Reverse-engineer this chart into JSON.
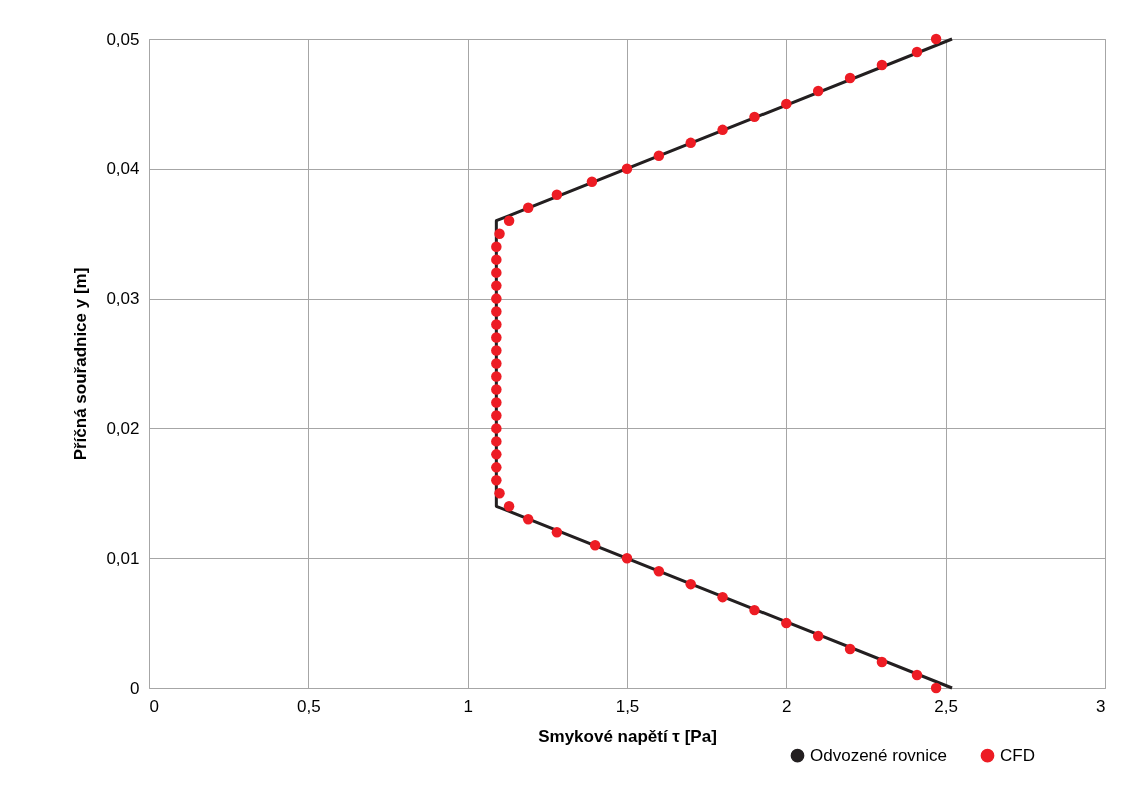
{
  "chart_data": {
    "type": "line",
    "xlabel": "Smykové napětí τ [Pa]",
    "ylabel": "Příčná souřadnice y [m]",
    "xlim": [
      0,
      3
    ],
    "ylim": [
      0,
      0.05
    ],
    "xticks": [
      0,
      {
        "value": 0.5,
        "label": "0,5"
      },
      1,
      {
        "value": 1.5,
        "label": "1,5"
      },
      2,
      {
        "value": 2.5,
        "label": "2,5"
      },
      3
    ],
    "yticks": [
      0,
      {
        "value": 0.01,
        "label": "0,01"
      },
      {
        "value": 0.02,
        "label": "0,02"
      },
      {
        "value": 0.03,
        "label": "0,03"
      },
      {
        "value": 0.04,
        "label": "0,04"
      },
      {
        "value": 0.05,
        "label": "0,05"
      }
    ],
    "grid": true,
    "legend": "bottom right",
    "series": [
      {
        "name": "Odvozené rovnice",
        "type": "line",
        "color": "#231f20",
        "marker": "none",
        "line_style": "solid",
        "x": [
          2.52,
          1.09,
          1.09,
          2.52
        ],
        "values": [
          0,
          0.014,
          0.036,
          0.05
        ]
      },
      {
        "name": "CFD",
        "type": "scatter",
        "color": "#ed1c24",
        "marker": "circle",
        "x": [
          2.47,
          2.41,
          2.3,
          2.2,
          2.1,
          2.0,
          1.9,
          1.8,
          1.7,
          1.6,
          1.5,
          1.4,
          1.28,
          1.19,
          1.13,
          1.1,
          1.09,
          1.09,
          1.09,
          1.09,
          1.09,
          1.09,
          1.09,
          1.09,
          1.09,
          1.09,
          1.09,
          1.09,
          1.09,
          1.09,
          1.09,
          1.09,
          1.09,
          1.09,
          1.09,
          1.1,
          1.13,
          1.19,
          1.28,
          1.39,
          1.5,
          1.6,
          1.7,
          1.8,
          1.9,
          2.0,
          2.1,
          2.2,
          2.3,
          2.41,
          2.47
        ],
        "values": [
          0,
          0.001,
          0.002,
          0.003,
          0.004,
          0.005,
          0.006,
          0.007,
          0.008,
          0.009,
          0.01,
          0.011,
          0.012,
          0.013,
          0.014,
          0.015,
          0.016,
          0.017,
          0.018,
          0.019,
          0.02,
          0.021,
          0.022,
          0.023,
          0.024,
          0.025,
          0.026,
          0.027,
          0.028,
          0.029,
          0.03,
          0.031,
          0.032,
          0.033,
          0.034,
          0.035,
          0.036,
          0.037,
          0.038,
          0.039,
          0.04,
          0.041,
          0.042,
          0.043,
          0.044,
          0.045,
          0.046,
          0.047,
          0.048,
          0.049,
          0.05
        ]
      }
    ]
  }
}
